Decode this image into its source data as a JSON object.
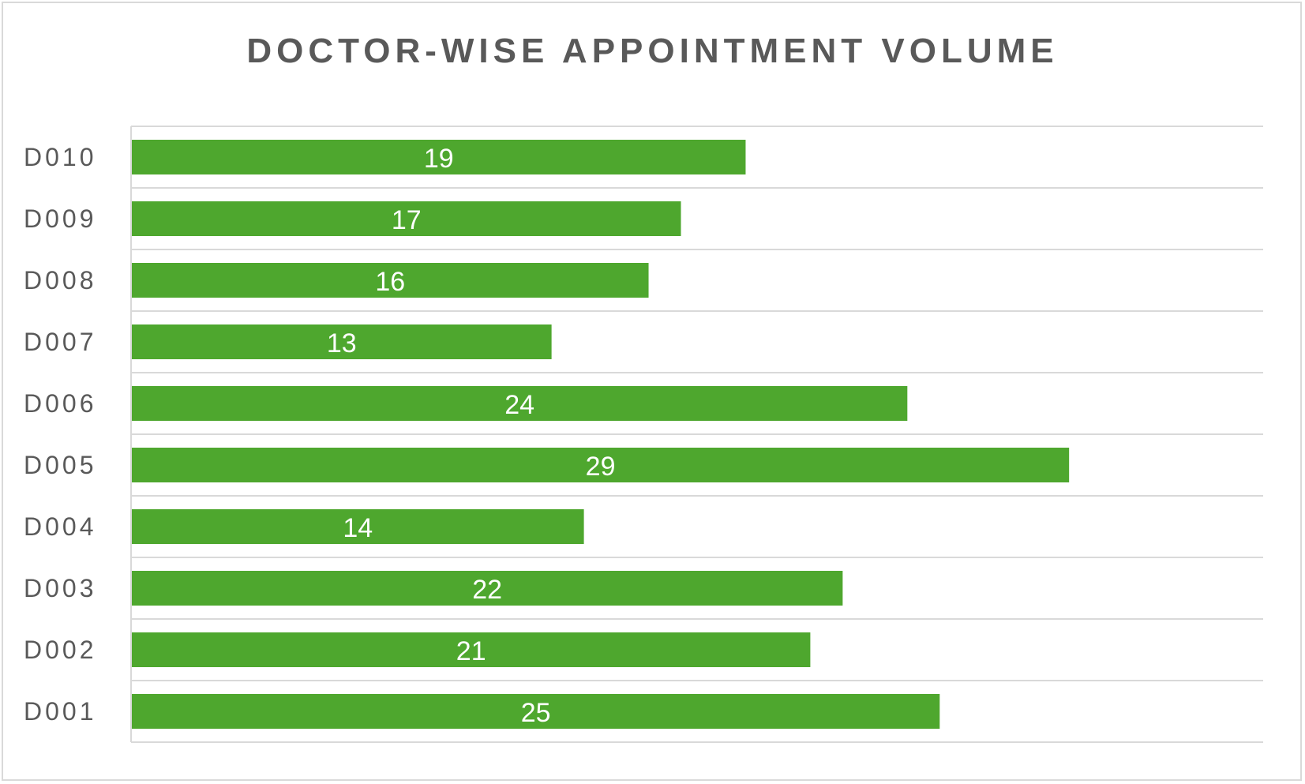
{
  "chart_data": {
    "type": "bar",
    "orientation": "horizontal",
    "title": "DOCTOR-WISE APPOINTMENT VOLUME",
    "categories": [
      "D010",
      "D009",
      "D008",
      "D007",
      "D006",
      "D005",
      "D004",
      "D003",
      "D002",
      "D001"
    ],
    "values": [
      19,
      17,
      16,
      13,
      24,
      29,
      14,
      22,
      21,
      25
    ],
    "xlabel": "",
    "ylabel": "",
    "xlim": [
      0,
      35
    ],
    "grid": true,
    "legend": "none",
    "bar_color": "#4ea72e",
    "data_labels": "inside-center"
  },
  "colors": {
    "title": "#595959",
    "gridline": "#d9d9d9",
    "axis_label": "#595959",
    "value_label": "#ffffff",
    "frame_border": "#d9d9d9"
  }
}
